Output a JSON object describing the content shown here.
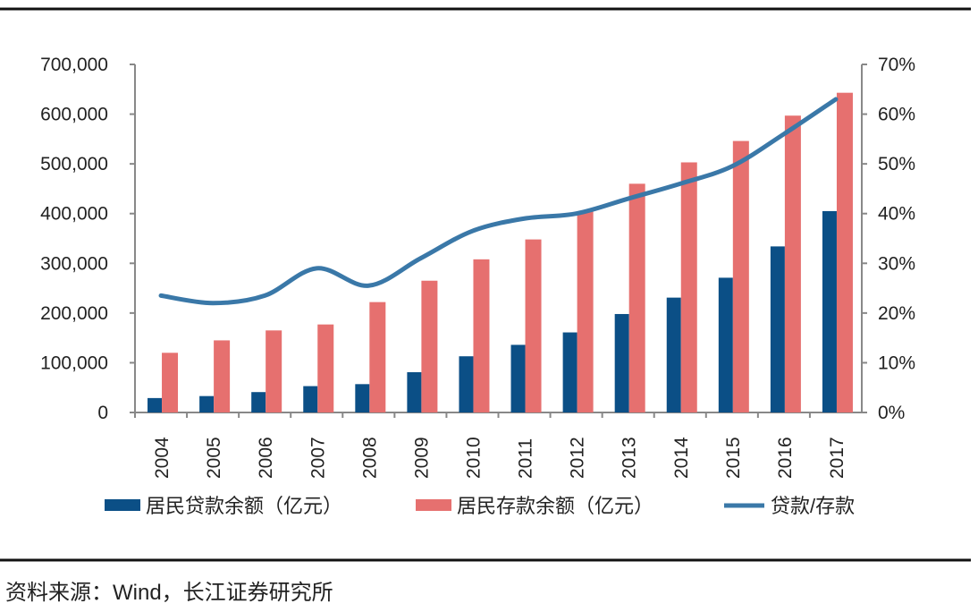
{
  "chart_data": {
    "type": "bar",
    "title": "",
    "categories": [
      "2004",
      "2005",
      "2006",
      "2007",
      "2008",
      "2009",
      "2010",
      "2011",
      "2012",
      "2013",
      "2014",
      "2015",
      "2016",
      "2017"
    ],
    "series": [
      {
        "name": "居民贷款余额（亿元）",
        "type": "bar",
        "axis": "left",
        "color": "#0b4f86",
        "values": [
          29000,
          33000,
          41000,
          53000,
          57000,
          81000,
          113000,
          136000,
          161000,
          198000,
          231000,
          271000,
          334000,
          405000
        ]
      },
      {
        "name": "居民存款余额（亿元）",
        "type": "bar",
        "axis": "left",
        "color": "#e6706f",
        "values": [
          120000,
          145000,
          165000,
          177000,
          222000,
          265000,
          308000,
          348000,
          404000,
          460000,
          503000,
          546000,
          597000,
          643000
        ]
      },
      {
        "name": "贷款/存款",
        "type": "line",
        "axis": "right",
        "color": "#3a78a8",
        "values": [
          23.5,
          22.0,
          23.5,
          29.0,
          25.5,
          31.0,
          36.5,
          39.0,
          40.0,
          43.0,
          46.0,
          49.5,
          56.0,
          63.0
        ]
      }
    ],
    "left_axis": {
      "ylim": [
        0,
        700000
      ],
      "ticks": [
        "0",
        "100,000",
        "200,000",
        "300,000",
        "400,000",
        "500,000",
        "600,000",
        "700,000"
      ]
    },
    "right_axis": {
      "ylim": [
        0,
        70
      ],
      "ticks": [
        "0%",
        "10%",
        "20%",
        "30%",
        "40%",
        "50%",
        "60%",
        "70%"
      ]
    },
    "grid": false,
    "legend_position": "bottom"
  },
  "source": "资料来源：Wind，长江证券研究所"
}
